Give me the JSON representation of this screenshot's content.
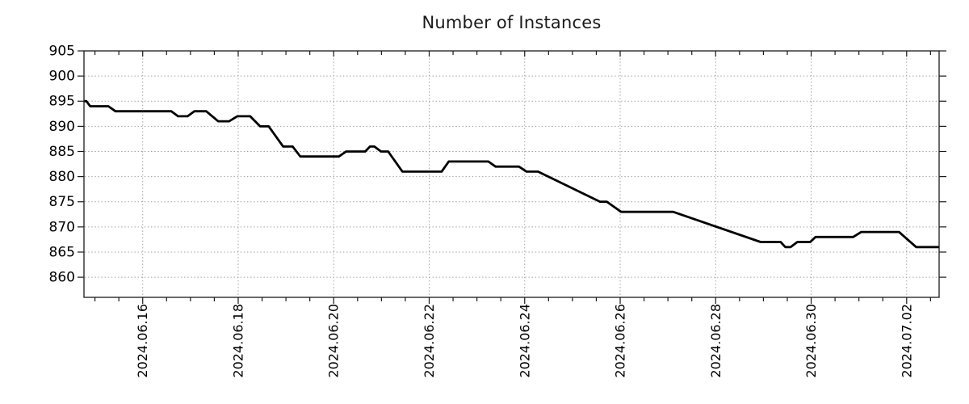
{
  "page": {
    "background": "#ffffff"
  },
  "chart_data": {
    "type": "line",
    "title": "Number of Instances",
    "legend": false,
    "grid": {
      "show": true,
      "color": "#a3a3a3",
      "style": "dotted"
    },
    "frame_color": "#1a1a1a",
    "text_color": "#000000",
    "x_axis": {
      "kind": "date",
      "day_zero_date": "2024.06.14",
      "range_days": [
        0.77,
        18.68
      ],
      "minor_tick_interval_days": 0.5,
      "major_tick_days": [
        2,
        4,
        6,
        8,
        10,
        12,
        14,
        16,
        18
      ],
      "major_tick_labels": [
        "2024.06.16",
        "2024.06.18",
        "2024.06.20",
        "2024.06.22",
        "2024.06.24",
        "2024.06.26",
        "2024.06.28",
        "2024.06.30",
        "2024.07.02"
      ]
    },
    "y_axis": {
      "range": [
        856,
        905
      ],
      "tick_values": [
        905,
        900,
        895,
        890,
        885,
        880,
        875,
        870,
        865,
        860
      ],
      "tick_labels": [
        "905",
        "900",
        "895",
        "890",
        "885",
        "880",
        "875",
        "870",
        "865",
        "860"
      ]
    },
    "series": [
      {
        "name": "Number of Instances",
        "color": "#000000",
        "line_width": 2.8,
        "points": [
          [
            0.77,
            895
          ],
          [
            0.82,
            895
          ],
          [
            0.9,
            894
          ],
          [
            1.28,
            894
          ],
          [
            1.43,
            893
          ],
          [
            2.6,
            893
          ],
          [
            2.74,
            892
          ],
          [
            2.94,
            892
          ],
          [
            3.08,
            893
          ],
          [
            3.33,
            893
          ],
          [
            3.58,
            891
          ],
          [
            3.81,
            891
          ],
          [
            3.98,
            892
          ],
          [
            4.25,
            892
          ],
          [
            4.46,
            890
          ],
          [
            4.64,
            890
          ],
          [
            4.94,
            886
          ],
          [
            5.14,
            886
          ],
          [
            5.3,
            884
          ],
          [
            6.11,
            884
          ],
          [
            6.26,
            885
          ],
          [
            6.66,
            885
          ],
          [
            6.76,
            886
          ],
          [
            6.85,
            886
          ],
          [
            6.99,
            885
          ],
          [
            7.14,
            885
          ],
          [
            7.44,
            881
          ],
          [
            8.26,
            881
          ],
          [
            8.41,
            883
          ],
          [
            9.24,
            883
          ],
          [
            9.39,
            882
          ],
          [
            9.88,
            882
          ],
          [
            10.04,
            881
          ],
          [
            10.28,
            881
          ],
          [
            11.58,
            875
          ],
          [
            11.72,
            875
          ],
          [
            12.02,
            873
          ],
          [
            13.11,
            873
          ],
          [
            14.94,
            867
          ],
          [
            15.36,
            867
          ],
          [
            15.46,
            866
          ],
          [
            15.57,
            866
          ],
          [
            15.71,
            867
          ],
          [
            15.98,
            867
          ],
          [
            16.09,
            868
          ],
          [
            16.88,
            868
          ],
          [
            17.05,
            869
          ],
          [
            17.84,
            869
          ],
          [
            18.2,
            866
          ],
          [
            18.68,
            866
          ]
        ]
      }
    ]
  }
}
